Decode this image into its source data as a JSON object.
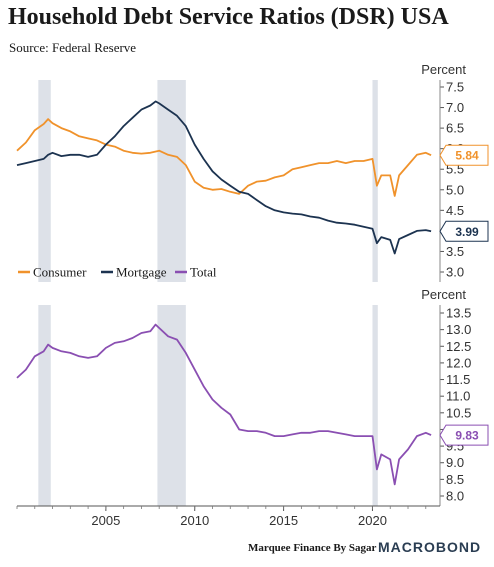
{
  "header": {
    "title": "Household Debt Service Ratios (DSR) USA",
    "subtitle": "Source: Federal Reserve"
  },
  "footer": {
    "credit": "Marquee Finance By Sagar",
    "brand": "MACROBOND"
  },
  "colors": {
    "consumer": "#f0922b",
    "mortgage": "#1c3350",
    "total": "#8a4fb2",
    "recession": "#dde1e8"
  },
  "chart_data": [
    {
      "type": "line",
      "ylabel": "Percent",
      "ylim": [
        3.0,
        7.5
      ],
      "yticks": [
        "3.0",
        "3.5",
        "4.0",
        "4.5",
        "5.0",
        "5.5",
        "6.0",
        "6.5",
        "7.0",
        "7.5"
      ],
      "xlim": [
        2000.0,
        2023.8
      ],
      "recessions": [
        [
          2001.2,
          2001.9
        ],
        [
          2007.9,
          2009.5
        ],
        [
          2020.0,
          2020.3
        ]
      ],
      "legend": [
        "Consumer",
        "Mortgage",
        "Total"
      ],
      "series": [
        {
          "name": "Consumer",
          "color": "#f0922b",
          "last_label": "5.84",
          "x": [
            2000.0,
            2000.5,
            2001.0,
            2001.5,
            2001.75,
            2002.0,
            2002.5,
            2003.0,
            2003.5,
            2004.0,
            2004.5,
            2005.0,
            2005.5,
            2006.0,
            2006.5,
            2007.0,
            2007.5,
            2008.0,
            2008.5,
            2009.0,
            2009.5,
            2010.0,
            2010.5,
            2011.0,
            2011.5,
            2012.0,
            2012.5,
            2013.0,
            2013.5,
            2014.0,
            2014.5,
            2015.0,
            2015.5,
            2016.0,
            2016.5,
            2017.0,
            2017.5,
            2018.0,
            2018.5,
            2019.0,
            2019.5,
            2020.0,
            2020.25,
            2020.5,
            2021.0,
            2021.25,
            2021.5,
            2022.0,
            2022.5,
            2023.0,
            2023.3
          ],
          "values": [
            5.95,
            6.15,
            6.45,
            6.6,
            6.72,
            6.62,
            6.5,
            6.42,
            6.3,
            6.25,
            6.2,
            6.1,
            6.05,
            5.95,
            5.9,
            5.88,
            5.9,
            5.95,
            5.85,
            5.8,
            5.6,
            5.2,
            5.05,
            5.0,
            5.02,
            4.95,
            4.9,
            5.1,
            5.2,
            5.22,
            5.3,
            5.35,
            5.5,
            5.55,
            5.6,
            5.65,
            5.65,
            5.7,
            5.65,
            5.7,
            5.7,
            5.75,
            5.1,
            5.35,
            5.35,
            4.85,
            5.35,
            5.6,
            5.85,
            5.9,
            5.84
          ]
        },
        {
          "name": "Mortgage",
          "color": "#1c3350",
          "last_label": "3.99",
          "x": [
            2000.0,
            2000.5,
            2001.0,
            2001.5,
            2001.75,
            2002.0,
            2002.5,
            2003.0,
            2003.5,
            2004.0,
            2004.5,
            2005.0,
            2005.5,
            2006.0,
            2006.5,
            2007.0,
            2007.5,
            2007.8,
            2008.0,
            2008.5,
            2009.0,
            2009.5,
            2010.0,
            2010.5,
            2011.0,
            2011.5,
            2012.0,
            2012.5,
            2013.0,
            2013.5,
            2014.0,
            2014.5,
            2015.0,
            2015.5,
            2016.0,
            2016.5,
            2017.0,
            2017.5,
            2018.0,
            2018.5,
            2019.0,
            2019.5,
            2020.0,
            2020.25,
            2020.5,
            2021.0,
            2021.25,
            2021.5,
            2022.0,
            2022.5,
            2023.0,
            2023.3
          ],
          "values": [
            5.6,
            5.65,
            5.7,
            5.75,
            5.85,
            5.9,
            5.82,
            5.85,
            5.85,
            5.8,
            5.85,
            6.1,
            6.3,
            6.55,
            6.75,
            6.95,
            7.05,
            7.15,
            7.1,
            6.95,
            6.8,
            6.55,
            6.1,
            5.75,
            5.45,
            5.25,
            5.1,
            4.95,
            4.9,
            4.75,
            4.6,
            4.5,
            4.45,
            4.42,
            4.4,
            4.35,
            4.32,
            4.25,
            4.2,
            4.18,
            4.15,
            4.1,
            4.05,
            3.7,
            3.85,
            3.78,
            3.45,
            3.8,
            3.9,
            4.0,
            4.02,
            3.99
          ]
        },
        {
          "name": "Total",
          "color": "#8a4fb2"
        }
      ]
    },
    {
      "type": "line",
      "ylabel": "Percent",
      "ylim": [
        8.0,
        13.5
      ],
      "yticks": [
        "8.0",
        "8.5",
        "9.0",
        "9.5",
        "10.0",
        "10.5",
        "11.0",
        "11.5",
        "12.0",
        "12.5",
        "13.0",
        "13.5"
      ],
      "xlim": [
        2000.0,
        2023.8
      ],
      "xticks": [
        "2005",
        "2010",
        "2015",
        "2020"
      ],
      "xtick_values": [
        2005,
        2010,
        2015,
        2020
      ],
      "recessions": [
        [
          2001.2,
          2001.9
        ],
        [
          2007.9,
          2009.5
        ],
        [
          2020.0,
          2020.3
        ]
      ],
      "series": [
        {
          "name": "Total",
          "color": "#8a4fb2",
          "last_label": "9.83",
          "x": [
            2000.0,
            2000.5,
            2001.0,
            2001.5,
            2001.75,
            2002.0,
            2002.5,
            2003.0,
            2003.5,
            2004.0,
            2004.5,
            2005.0,
            2005.5,
            2006.0,
            2006.5,
            2007.0,
            2007.5,
            2007.8,
            2008.0,
            2008.5,
            2009.0,
            2009.5,
            2010.0,
            2010.5,
            2011.0,
            2011.5,
            2012.0,
            2012.5,
            2013.0,
            2013.5,
            2014.0,
            2014.5,
            2015.0,
            2015.5,
            2016.0,
            2016.5,
            2017.0,
            2017.5,
            2018.0,
            2018.5,
            2019.0,
            2019.5,
            2020.0,
            2020.25,
            2020.5,
            2021.0,
            2021.25,
            2021.5,
            2022.0,
            2022.5,
            2023.0,
            2023.3
          ],
          "values": [
            11.55,
            11.8,
            12.2,
            12.35,
            12.55,
            12.45,
            12.35,
            12.3,
            12.2,
            12.15,
            12.2,
            12.45,
            12.6,
            12.65,
            12.75,
            12.9,
            12.95,
            13.15,
            13.05,
            12.8,
            12.7,
            12.3,
            11.8,
            11.3,
            10.9,
            10.65,
            10.45,
            10.0,
            9.95,
            9.95,
            9.9,
            9.8,
            9.8,
            9.85,
            9.9,
            9.9,
            9.95,
            9.95,
            9.9,
            9.85,
            9.8,
            9.8,
            9.8,
            8.8,
            9.25,
            9.1,
            8.35,
            9.1,
            9.4,
            9.8,
            9.9,
            9.83
          ]
        }
      ]
    }
  ]
}
